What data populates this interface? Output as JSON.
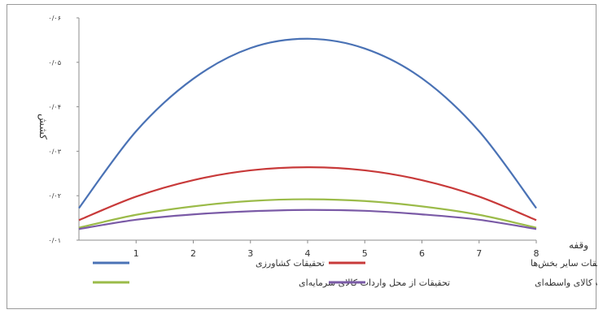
{
  "chart_data": {
    "type": "line",
    "xlabel": "وقفه",
    "ylabel": "کشش",
    "x_ticks": [
      "1",
      "2",
      "3",
      "4",
      "5",
      "6",
      "7",
      "8"
    ],
    "y_ticks": [
      "۰/۰۱",
      "۰/۰۲",
      "۰/۰۳",
      "۰/۰۴",
      "۰/۰۵",
      "۰/۰۶"
    ],
    "xlim": [
      0,
      8
    ],
    "ylim": [
      0.01,
      0.06
    ],
    "grid": false,
    "legend_position": "bottom",
    "series": [
      {
        "name": "تحقیقات کشاورزی",
        "color": "#4a72b5",
        "x": [
          0,
          1,
          2,
          3,
          4,
          5,
          6,
          7,
          8
        ],
        "values": [
          0.0172,
          0.0345,
          0.0463,
          0.0532,
          0.0553,
          0.0531,
          0.0464,
          0.0345,
          0.0172
        ]
      },
      {
        "name": "تحقیقات سایر بخش‌ها",
        "color": "#c83a3a",
        "x": [
          0,
          1,
          2,
          3,
          4,
          5,
          6,
          7,
          8
        ],
        "values": [
          0.0145,
          0.0198,
          0.0235,
          0.0257,
          0.0264,
          0.0257,
          0.0235,
          0.0198,
          0.0145
        ]
      },
      {
        "name": "تحقیقات از محل واردات کالای سرمایه‌ای",
        "color": "#9bbb49",
        "x": [
          0,
          1,
          2,
          3,
          4,
          5,
          6,
          7,
          8
        ],
        "values": [
          0.0128,
          0.0157,
          0.0176,
          0.0188,
          0.0192,
          0.0188,
          0.0176,
          0.0157,
          0.0128
        ]
      },
      {
        "name": "تحقیقات از محل واردات کالای واسطه‌ای",
        "color": "#7a5aa6",
        "x": [
          0,
          1,
          2,
          3,
          4,
          5,
          6,
          7,
          8
        ],
        "values": [
          0.0125,
          0.0146,
          0.0158,
          0.0165,
          0.0168,
          0.0166,
          0.0158,
          0.0146,
          0.0125
        ]
      }
    ]
  }
}
